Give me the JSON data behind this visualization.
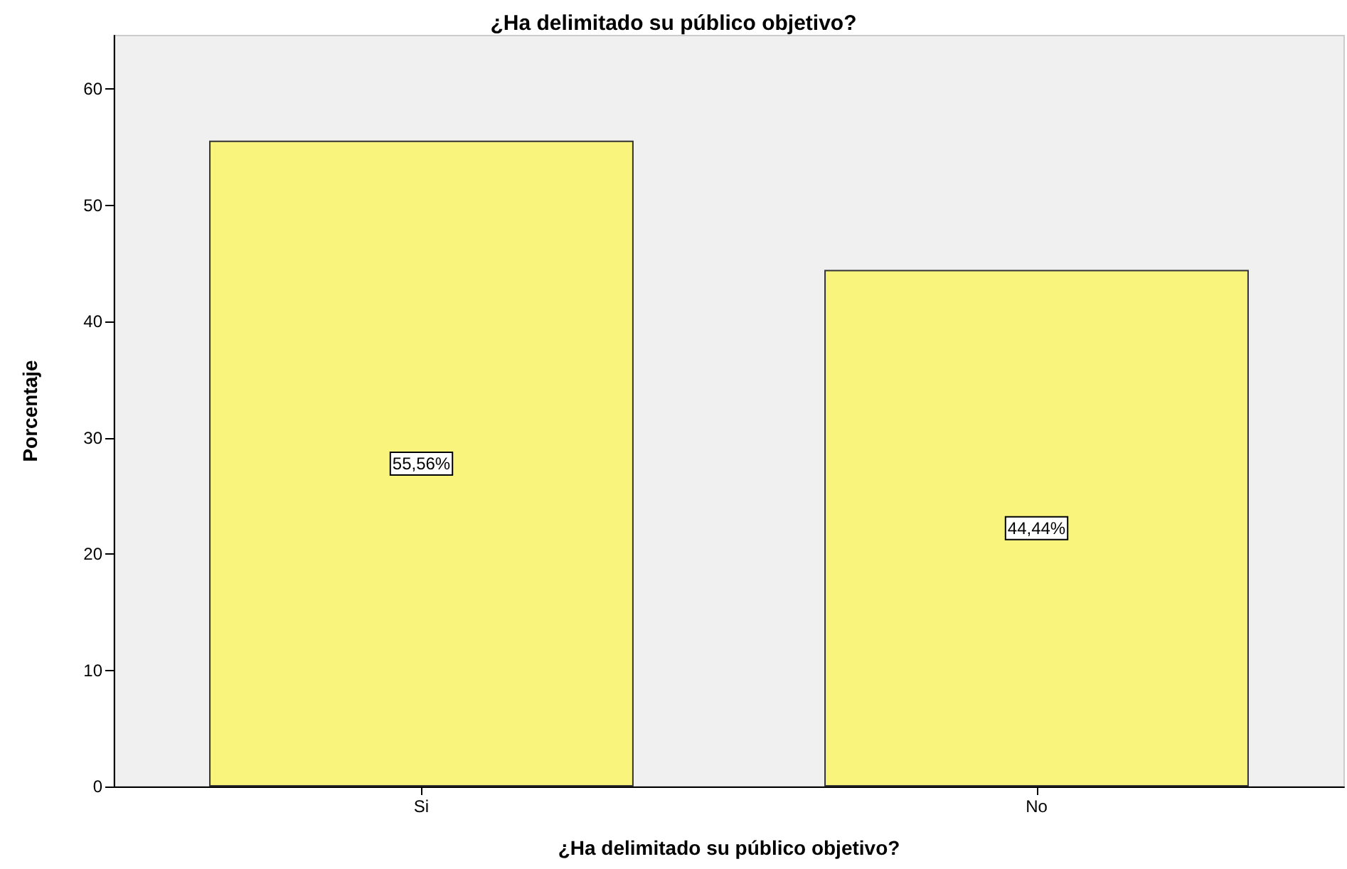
{
  "chart_data": {
    "type": "bar",
    "title": "¿Ha delimitado su público objetivo?",
    "xlabel": "¿Ha delimitado su público objetivo?",
    "ylabel": "Porcentaje",
    "categories": [
      "Si",
      "No"
    ],
    "values": [
      55.56,
      44.44
    ],
    "color": "#f8f47c",
    "value_labels": [
      "55,56%",
      "44,44%"
    ],
    "ylim": [
      0,
      64.6
    ],
    "yticks": [
      0,
      10,
      20,
      30,
      40,
      50,
      60
    ],
    "grid": false
  }
}
